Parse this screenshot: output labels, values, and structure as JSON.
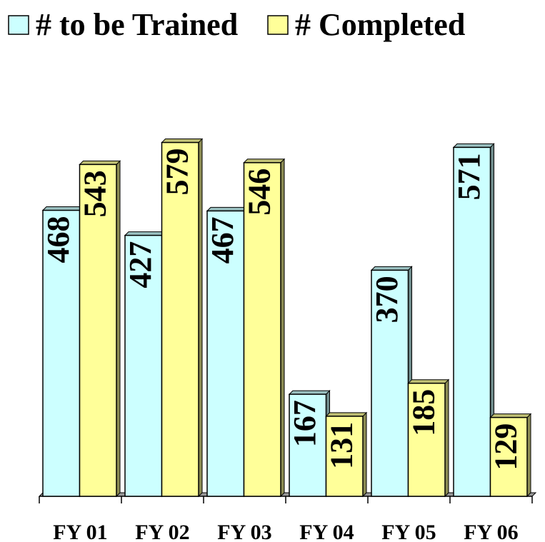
{
  "chart_data": {
    "type": "bar",
    "categories": [
      "FY 01",
      "FY 02",
      "FY 03",
      "FY 04",
      "FY 05",
      "FY 06"
    ],
    "series": [
      {
        "name": "# to be Trained",
        "color": "#ccffff",
        "values": [
          468,
          427,
          467,
          167,
          370,
          571
        ]
      },
      {
        "name": "# Completed",
        "color": "#ffff99",
        "values": [
          543,
          579,
          546,
          131,
          185,
          129
        ]
      }
    ],
    "ylim": [
      0,
      700
    ],
    "legend": "top"
  }
}
